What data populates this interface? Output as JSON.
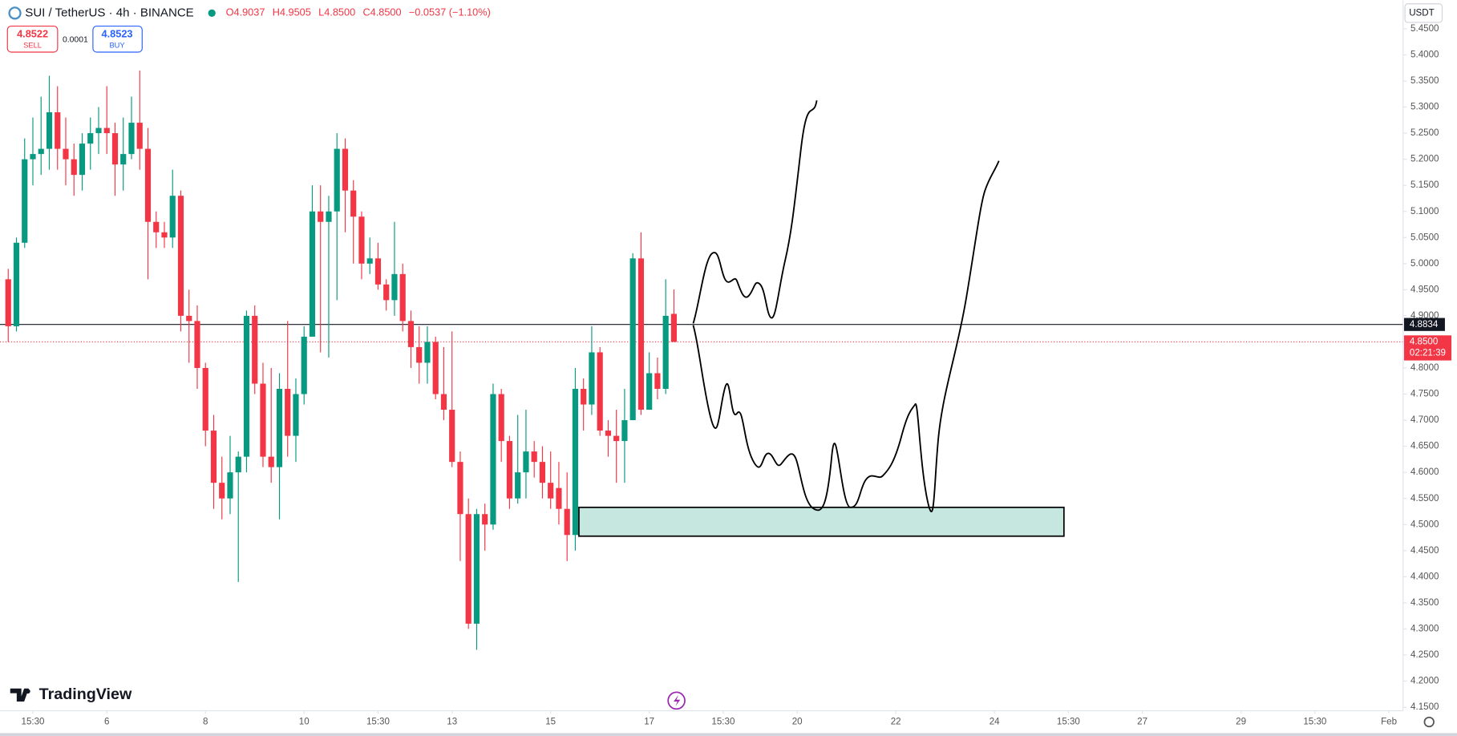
{
  "chart_data": {
    "type": "candlestick",
    "title": "SUI / TetherUS · 4h · BINANCE",
    "ohlc_legend": [
      "O4.9037",
      "H4.9505",
      "L4.8500",
      "C4.8500",
      "−0.0537 (−1.10%)"
    ],
    "sell": {
      "price": "4.8522",
      "label": "SELL"
    },
    "spread": "0.0001",
    "buy": {
      "price": "4.8523",
      "label": "BUY"
    },
    "currency": "USDT",
    "brand": "TradingView",
    "up_color": "#089981",
    "down_color": "#f23645",
    "open": [
      4.97,
      4.88,
      5.04,
      5.2,
      5.21,
      5.22,
      5.29,
      5.22,
      5.2,
      5.17,
      5.23,
      5.25,
      5.26,
      5.25,
      5.19,
      5.21,
      5.27,
      5.22,
      5.08,
      5.06,
      5.05,
      5.13,
      4.9,
      4.89,
      4.8,
      4.68,
      4.58,
      4.55,
      4.6,
      4.63,
      4.9,
      4.77,
      4.63,
      4.61,
      4.76,
      4.67,
      4.75,
      4.86,
      5.1,
      5.08,
      5.1,
      5.22,
      5.14,
      5.09,
      5.0,
      5.01,
      4.96,
      4.93,
      4.98,
      4.89,
      4.84,
      4.81,
      4.85,
      4.75,
      4.72,
      4.62,
      4.52,
      4.31,
      4.52,
      4.5,
      4.75,
      4.66,
      4.55,
      4.6,
      4.64,
      4.62,
      4.58,
      4.57,
      4.53,
      4.48,
      4.76,
      4.73,
      4.83,
      4.68,
      4.67,
      4.66,
      4.7,
      5.01,
      4.72,
      4.79,
      4.76,
      4.9037
    ],
    "high": [
      4.99,
      5.05,
      5.24,
      5.28,
      5.32,
      5.36,
      5.34,
      5.28,
      5.23,
      5.25,
      5.28,
      5.3,
      5.34,
      5.27,
      5.28,
      5.32,
      5.37,
      5.26,
      5.1,
      5.08,
      5.18,
      5.14,
      4.95,
      4.92,
      4.81,
      4.71,
      4.63,
      4.67,
      4.64,
      4.91,
      4.92,
      4.81,
      4.8,
      4.79,
      4.89,
      4.78,
      4.88,
      5.15,
      5.15,
      5.13,
      5.25,
      5.24,
      5.16,
      5.1,
      5.05,
      5.04,
      4.97,
      5.08,
      5.0,
      4.91,
      4.88,
      4.88,
      4.86,
      4.84,
      4.87,
      4.64,
      4.55,
      4.53,
      4.54,
      4.77,
      4.76,
      4.67,
      4.71,
      4.72,
      4.66,
      4.65,
      4.64,
      4.62,
      4.6,
      4.8,
      4.78,
      4.88,
      4.84,
      4.7,
      4.72,
      4.76,
      5.02,
      5.06,
      4.83,
      4.82,
      4.97,
      4.9505
    ],
    "low": [
      4.85,
      4.87,
      5.03,
      5.15,
      5.17,
      5.18,
      5.18,
      5.15,
      5.13,
      5.14,
      5.18,
      5.21,
      5.21,
      5.13,
      5.14,
      5.2,
      5.18,
      4.97,
      5.03,
      5.03,
      5.03,
      4.87,
      4.81,
      4.76,
      4.65,
      4.53,
      4.51,
      4.52,
      4.39,
      4.6,
      4.75,
      4.61,
      4.58,
      4.51,
      4.63,
      4.62,
      4.73,
      4.87,
      4.83,
      4.82,
      4.93,
      5.06,
      5.0,
      4.97,
      4.98,
      4.95,
      4.91,
      4.9,
      4.87,
      4.8,
      4.77,
      4.77,
      4.74,
      4.7,
      4.61,
      4.43,
      4.3,
      4.26,
      4.45,
      4.49,
      4.62,
      4.53,
      4.54,
      4.55,
      4.59,
      4.55,
      4.53,
      4.5,
      4.43,
      4.45,
      4.68,
      4.71,
      4.67,
      4.63,
      4.58,
      4.58,
      4.7,
      4.71,
      4.72,
      4.74,
      4.75,
      4.85
    ],
    "close": [
      4.88,
      5.04,
      5.2,
      5.21,
      5.22,
      5.29,
      5.22,
      5.2,
      5.17,
      5.23,
      5.25,
      5.26,
      5.25,
      5.19,
      5.21,
      5.27,
      5.22,
      5.08,
      5.06,
      5.05,
      5.13,
      4.9,
      4.89,
      4.8,
      4.68,
      4.58,
      4.55,
      4.6,
      4.63,
      4.9,
      4.77,
      4.63,
      4.61,
      4.76,
      4.67,
      4.75,
      4.86,
      5.1,
      5.08,
      5.1,
      5.22,
      5.14,
      5.09,
      5.0,
      5.01,
      4.96,
      4.93,
      4.98,
      4.89,
      4.84,
      4.81,
      4.85,
      4.75,
      4.72,
      4.62,
      4.52,
      4.31,
      4.52,
      4.5,
      4.75,
      4.66,
      4.55,
      4.6,
      4.64,
      4.62,
      4.58,
      4.55,
      4.53,
      4.48,
      4.76,
      4.73,
      4.83,
      4.68,
      4.67,
      4.66,
      4.7,
      5.01,
      4.72,
      4.79,
      4.76,
      4.9,
      4.85
    ],
    "xlim": [
      -1,
      169.5
    ],
    "xticks": [
      {
        "value": 3,
        "label": "15:30"
      },
      {
        "value": 12,
        "label": "6"
      },
      {
        "value": 24,
        "label": "8"
      },
      {
        "value": 36,
        "label": "10"
      },
      {
        "value": 45,
        "label": "15:30"
      },
      {
        "value": 54,
        "label": "13"
      },
      {
        "value": 66,
        "label": "15"
      },
      {
        "value": 78,
        "label": "17"
      },
      {
        "value": 87,
        "label": "15:30"
      },
      {
        "value": 96,
        "label": "20"
      },
      {
        "value": 108,
        "label": "22"
      },
      {
        "value": 120,
        "label": "24"
      },
      {
        "value": 129,
        "label": "15:30"
      },
      {
        "value": 138,
        "label": "27"
      },
      {
        "value": 150,
        "label": "29"
      },
      {
        "value": 159,
        "label": "15:30"
      },
      {
        "value": 168,
        "label": "Feb"
      }
    ],
    "ylim": [
      4.143,
      5.505
    ],
    "yticks": [
      {
        "value": 4.15,
        "label": "4.1500"
      },
      {
        "value": 4.2,
        "label": "4.2000"
      },
      {
        "value": 4.25,
        "label": "4.2500"
      },
      {
        "value": 4.3,
        "label": "4.3000"
      },
      {
        "value": 4.35,
        "label": "4.3500"
      },
      {
        "value": 4.4,
        "label": "4.4000"
      },
      {
        "value": 4.45,
        "label": "4.4500"
      },
      {
        "value": 4.5,
        "label": "4.5000"
      },
      {
        "value": 4.55,
        "label": "4.5500"
      },
      {
        "value": 4.6,
        "label": "4.6000"
      },
      {
        "value": 4.65,
        "label": "4.6500"
      },
      {
        "value": 4.7,
        "label": "4.7000"
      },
      {
        "value": 4.75,
        "label": "4.7500"
      },
      {
        "value": 4.8,
        "label": "4.8000"
      },
      {
        "value": 4.85,
        "label": "4.8500"
      },
      {
        "value": 4.9,
        "label": "4.9000"
      },
      {
        "value": 4.95,
        "label": "4.9500"
      },
      {
        "value": 5.0,
        "label": "5.0000"
      },
      {
        "value": 5.05,
        "label": "5.0500"
      },
      {
        "value": 5.1,
        "label": "5.1000"
      },
      {
        "value": 5.15,
        "label": "5.1500"
      },
      {
        "value": 5.2,
        "label": "5.2000"
      },
      {
        "value": 5.25,
        "label": "5.2500"
      },
      {
        "value": 5.3,
        "label": "5.3000"
      },
      {
        "value": 5.35,
        "label": "5.3500"
      },
      {
        "value": 5.4,
        "label": "5.4000"
      },
      {
        "value": 5.45,
        "label": "5.4500"
      }
    ],
    "grid": false,
    "hline": 4.8834,
    "last_price": {
      "value": 4.85,
      "label": "4.8500",
      "countdown": "02:21:39"
    }
  }
}
